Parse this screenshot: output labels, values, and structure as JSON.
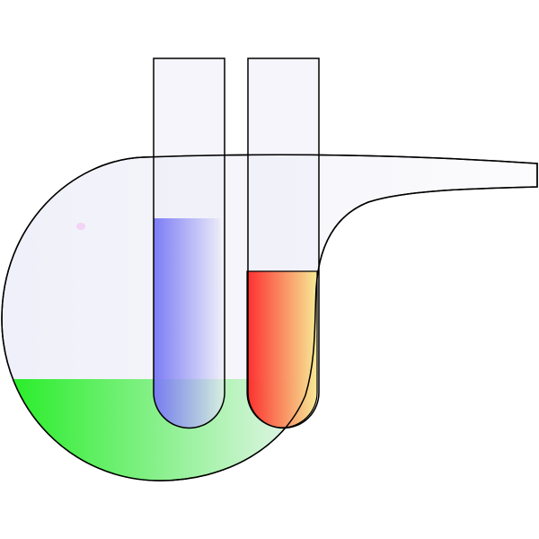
{
  "illustration": {
    "subject": "retort-flask-with-test-tubes",
    "colors": {
      "glass": "#f2f2fa",
      "outline": "#000000",
      "green_liquid": "#22ee22",
      "blue_liquid": "#6f6ff5",
      "red_liquid": "#ff1a1a",
      "yellow_liquid": "#f7e98a"
    },
    "liquid_levels": {
      "retort_green": 0.18,
      "tube_left_blue": 0.6,
      "tube_right_red": 0.43
    }
  }
}
